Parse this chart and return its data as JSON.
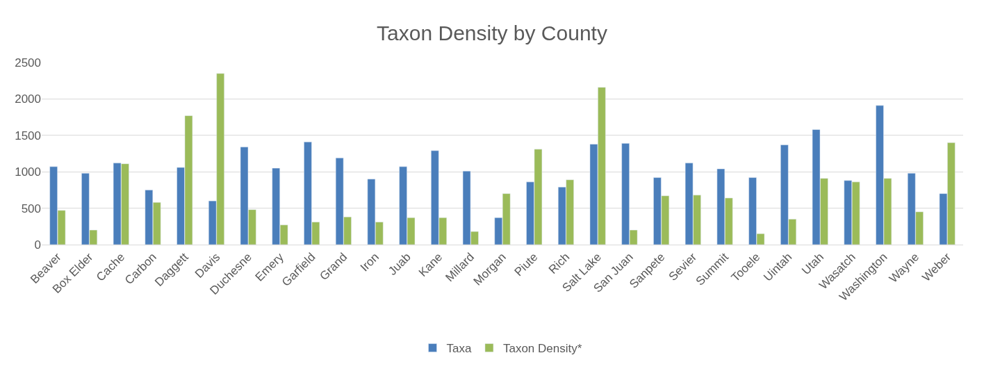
{
  "chart_data": {
    "type": "bar",
    "title": "Taxon Density by County",
    "categories": [
      "Beaver",
      "Box Elder",
      "Cache",
      "Carbon",
      "Daggett",
      "Davis",
      "Duchesne",
      "Emery",
      "Garfield",
      "Grand",
      "Iron",
      "Juab",
      "Kane",
      "Millard",
      "Morgan",
      "Piute",
      "Rich",
      "Salt Lake",
      "San Juan",
      "Sanpete",
      "Sevier",
      "Summit",
      "Tooele",
      "Uintah",
      "Utah",
      "Wasatch",
      "Washington",
      "Wayne",
      "Weber"
    ],
    "series": [
      {
        "name": "Taxa",
        "color": "#4a7ebb",
        "values": [
          1070,
          980,
          1120,
          750,
          1060,
          600,
          1340,
          1050,
          1410,
          1190,
          900,
          1070,
          1290,
          1010,
          370,
          860,
          790,
          1380,
          1390,
          920,
          1120,
          1040,
          920,
          1370,
          1580,
          880,
          1910,
          980,
          700
        ]
      },
      {
        "name": "Taxon Density*",
        "color": "#9bbb59",
        "values": [
          470,
          200,
          1110,
          580,
          1770,
          2350,
          480,
          270,
          310,
          380,
          310,
          370,
          370,
          180,
          700,
          1310,
          890,
          2160,
          200,
          670,
          680,
          640,
          150,
          350,
          910,
          860,
          910,
          450,
          1400
        ]
      }
    ],
    "ylim": [
      0,
      2500
    ],
    "yticks": [
      0,
      500,
      1000,
      1500,
      2000,
      2500
    ],
    "grid": "y",
    "legend": "bottom"
  }
}
